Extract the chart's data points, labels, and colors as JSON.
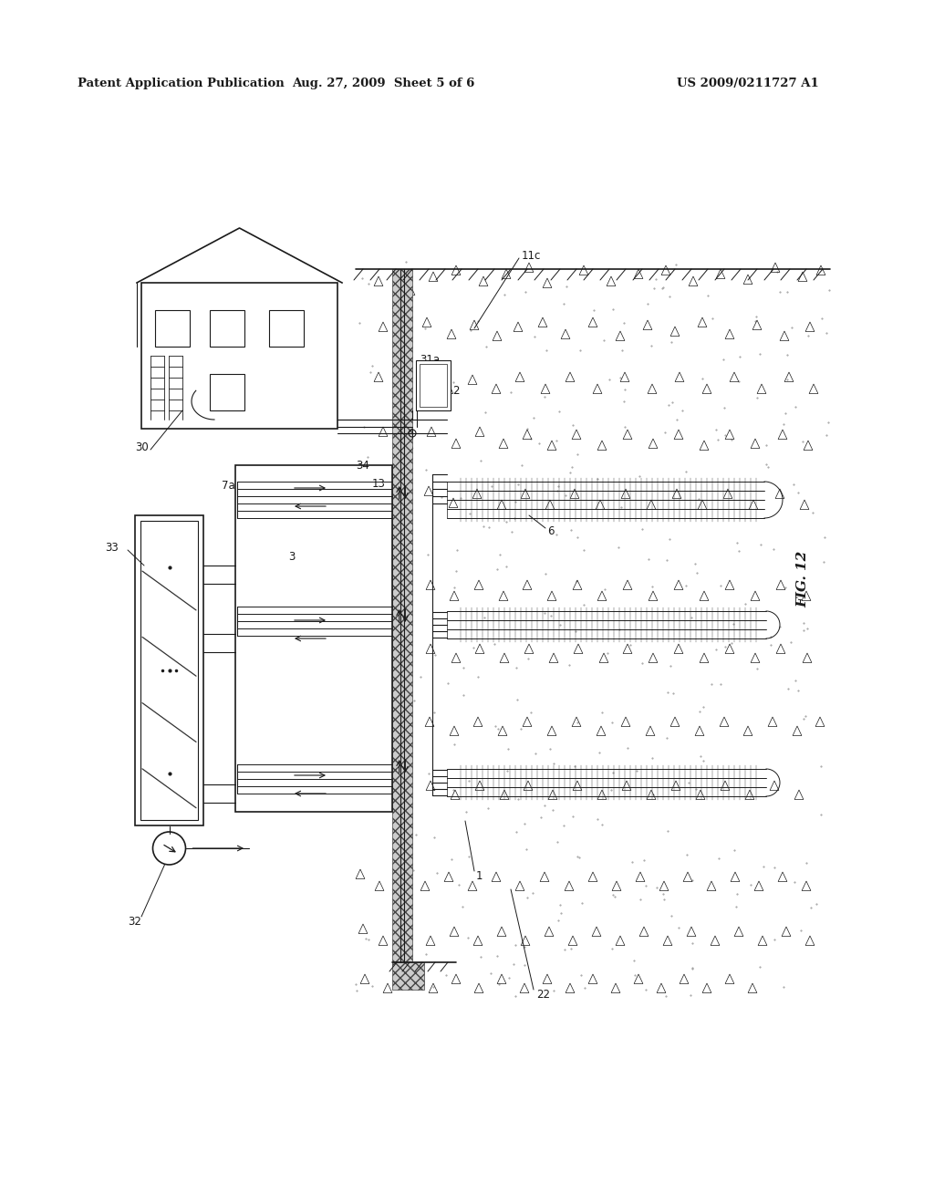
{
  "header_left": "Patent Application Publication",
  "header_mid": "Aug. 27, 2009  Sheet 5 of 6",
  "header_right": "US 2009/0211727 A1",
  "fig_label": "FIG. 12",
  "background_color": "#ffffff",
  "line_color": "#1a1a1a"
}
